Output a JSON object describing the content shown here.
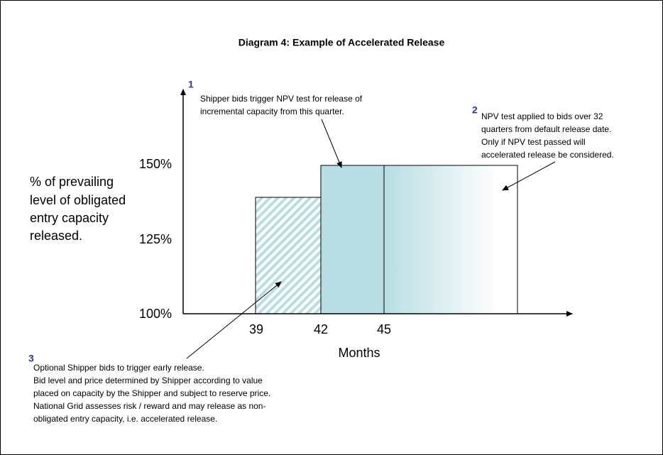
{
  "title": "Diagram 4: Example of Accelerated Release",
  "y_axis": {
    "label_lines": [
      "% of prevailing",
      "level of obligated",
      "entry capacity",
      "released."
    ],
    "ticks": [
      "150%",
      "125%",
      "100%"
    ]
  },
  "x_axis": {
    "label": "Months",
    "ticks": [
      "39",
      "42",
      "45"
    ]
  },
  "notes": [
    {
      "number": "1",
      "lines": [
        "Shipper bids trigger NPV test for release of",
        "incremental capacity from this quarter."
      ]
    },
    {
      "number": "2",
      "lines": [
        "NPV test applied to bids over 32",
        "quarters from default release date.",
        "Only if NPV test passed will",
        "accelerated release be considered."
      ]
    },
    {
      "number": "3",
      "lines": [
        "Optional Shipper bids to trigger early release.",
        "Bid level and price determined by Shipper according to value",
        "placed on capacity by the Shipper and subject to reserve price.",
        "National Grid assesses risk / reward and may release as non-",
        "obligated entry capacity, i.e. accelerated release."
      ]
    }
  ]
}
